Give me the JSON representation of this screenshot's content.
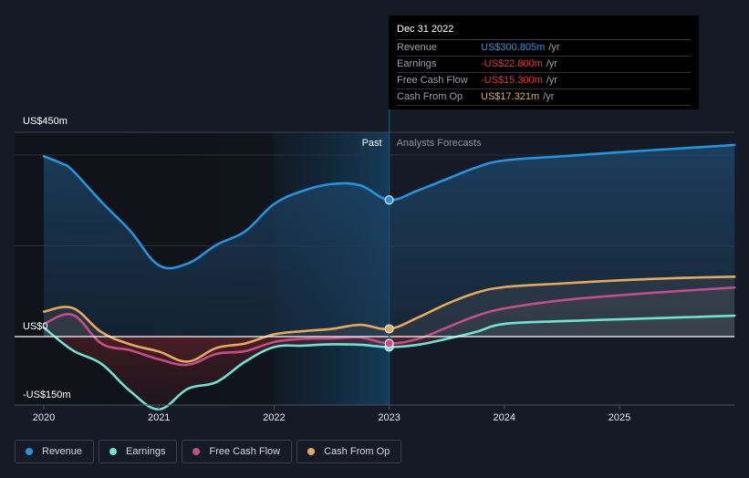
{
  "chart_data": {
    "type": "line",
    "title": "",
    "xlabel": "",
    "ylabel": "",
    "y_unit_labels": [
      "US$450m",
      "US$0",
      "-US$150m"
    ],
    "ylim": [
      -150,
      450
    ],
    "xlim": [
      2019.8,
      2026.0
    ],
    "x_ticks": [
      2020,
      2021,
      2022,
      2023,
      2024,
      2025
    ],
    "x_tick_labels": [
      "2020",
      "2021",
      "2022",
      "2023",
      "2024",
      "2025"
    ],
    "grid": true,
    "divider_x": 2023.0,
    "sections": {
      "past": "Past",
      "forecast": "Analysts Forecasts"
    },
    "legend_position": "bottom-left",
    "series": [
      {
        "name": "Revenue",
        "color": "#2394df",
        "x": [
          2020.0,
          2020.15,
          2020.25,
          2020.5,
          2020.75,
          2021.0,
          2021.25,
          2021.5,
          2021.75,
          2022.0,
          2022.25,
          2022.5,
          2022.75,
          2023.0,
          2023.25,
          2023.5,
          2023.75,
          2024.0,
          2024.5,
          2025.0,
          2025.5,
          2026.0
        ],
        "values": [
          397,
          382,
          366,
          297,
          233,
          157,
          161,
          202,
          232,
          292,
          321,
          336,
          333,
          301,
          322,
          347,
          372,
          388,
          397,
          406,
          414,
          422
        ]
      },
      {
        "name": "Earnings",
        "color": "#6de3d3",
        "x": [
          2020.0,
          2020.25,
          2020.5,
          2020.75,
          2021.0,
          2021.25,
          2021.5,
          2021.75,
          2022.0,
          2022.25,
          2022.5,
          2022.75,
          2023.0,
          2023.25,
          2023.5,
          2023.75,
          2024.0,
          2024.5,
          2025.0,
          2025.5,
          2026.0
        ],
        "values": [
          20,
          -30,
          -60,
          -120,
          -160,
          -115,
          -100,
          -55,
          -23,
          -20,
          -17,
          -18,
          -23,
          -18,
          -5,
          10,
          28,
          34,
          38,
          42,
          46
        ]
      },
      {
        "name": "Free Cash Flow",
        "color": "#c44d8a",
        "x": [
          2020.0,
          2020.25,
          2020.5,
          2020.75,
          2021.0,
          2021.25,
          2021.5,
          2021.75,
          2022.0,
          2022.25,
          2022.5,
          2022.75,
          2023.0,
          2023.25,
          2023.5,
          2023.75,
          2024.0,
          2024.5,
          2025.0,
          2025.5,
          2026.0
        ],
        "values": [
          28,
          48,
          -15,
          -30,
          -50,
          -62,
          -38,
          -32,
          -12,
          -5,
          -4,
          -2,
          -15,
          -5,
          20,
          45,
          62,
          80,
          91,
          100,
          108
        ]
      },
      {
        "name": "Cash From Op",
        "color": "#e6a95a",
        "x": [
          2020.0,
          2020.25,
          2020.5,
          2020.75,
          2021.0,
          2021.25,
          2021.5,
          2021.75,
          2022.0,
          2022.25,
          2022.5,
          2022.75,
          2023.0,
          2023.25,
          2023.5,
          2023.75,
          2024.0,
          2024.5,
          2025.0,
          2025.5,
          2026.0
        ],
        "values": [
          55,
          63,
          10,
          -17,
          -33,
          -55,
          -25,
          -15,
          5,
          12,
          17,
          26,
          17,
          42,
          72,
          96,
          109,
          117,
          124,
          129,
          132
        ]
      }
    ]
  },
  "tooltip": {
    "date": "Dec 31 2022",
    "rows": [
      {
        "label": "Revenue",
        "value": "US$300.805m",
        "unit": "/yr",
        "color": "#2394df"
      },
      {
        "label": "Earnings",
        "value": "-US$22.800m",
        "unit": "/yr",
        "color": "#e0393e"
      },
      {
        "label": "Free Cash Flow",
        "value": "-US$15.300m",
        "unit": "/yr",
        "color": "#e0393e"
      },
      {
        "label": "Cash From Op",
        "value": "US$17.321m",
        "unit": "/yr",
        "color": "#e6a95a"
      }
    ]
  },
  "legend": [
    {
      "label": "Revenue",
      "color": "#2394df"
    },
    {
      "label": "Earnings",
      "color": "#6de3d3"
    },
    {
      "label": "Free Cash Flow",
      "color": "#c44d8a"
    },
    {
      "label": "Cash From Op",
      "color": "#e6a95a"
    }
  ]
}
